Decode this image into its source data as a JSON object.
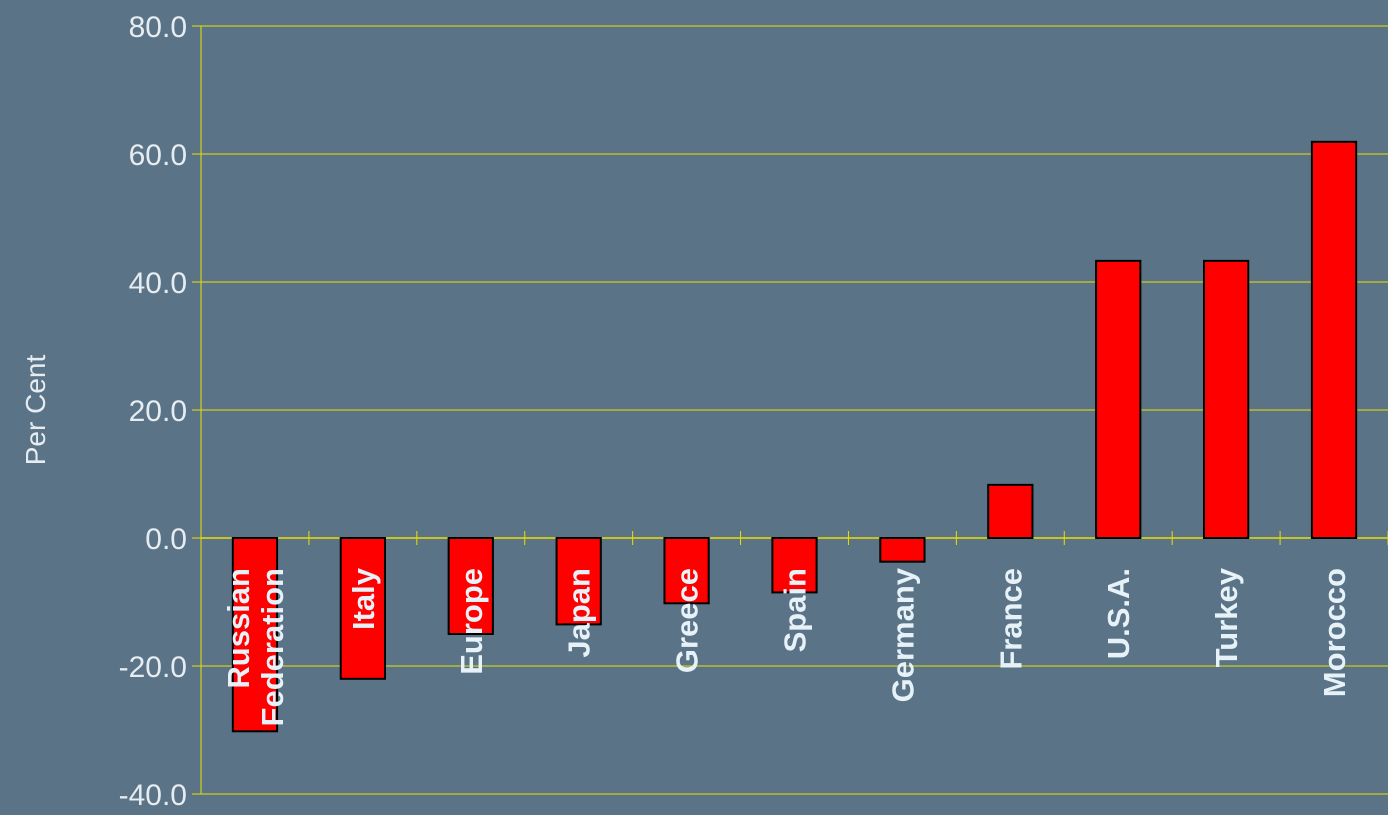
{
  "chart_data": {
    "type": "bar",
    "title": "",
    "xlabel": "",
    "ylabel": "Per Cent",
    "ylim": [
      -40,
      80
    ],
    "yticks": [
      -40,
      -20,
      0,
      20,
      40,
      60,
      80
    ],
    "ytick_labels": [
      "-40.0",
      "-20.0",
      "0.0",
      "20.0",
      "40.0",
      "60.0",
      "80.0"
    ],
    "grid": true,
    "categories": [
      "Russian Federation",
      "Italy",
      "Europe",
      "Japan",
      "Greece",
      "Spain",
      "Germany",
      "France",
      "U.S.A.",
      "Turkey",
      "Morocco"
    ],
    "category_lines": [
      [
        "Russian",
        "Federation"
      ],
      [
        "Italy"
      ],
      [
        "Europe"
      ],
      [
        "Japan"
      ],
      [
        "Greece"
      ],
      [
        "Spain"
      ],
      [
        "Germany"
      ],
      [
        "France"
      ],
      [
        "U.S.A."
      ],
      [
        "Turkey"
      ],
      [
        "Morocco"
      ]
    ],
    "values": [
      -30.2,
      -22.0,
      -15.0,
      -13.5,
      -10.2,
      -8.5,
      -3.7,
      8.3,
      43.3,
      43.3,
      61.9
    ],
    "colors": {
      "background": "#5a7387",
      "bar": "#ff0000",
      "bar_outline": "#000000",
      "grid": "#e8e000",
      "tick_text": "#e6ecf0",
      "category_text": "#e6f2f8",
      "title": "#ffff00"
    }
  }
}
